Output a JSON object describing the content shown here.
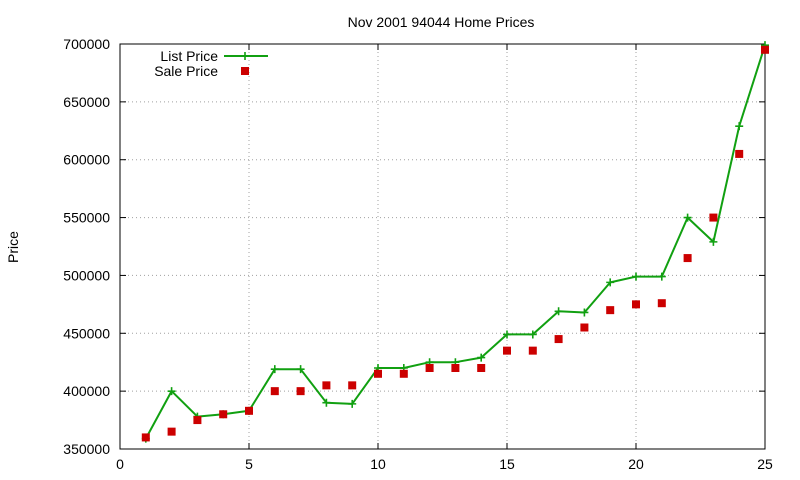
{
  "chart_data": {
    "type": "line",
    "title": "Nov 2001 94044 Home Prices",
    "xlabel": "",
    "ylabel": "Price",
    "xlim": [
      0,
      25
    ],
    "ylim": [
      350000,
      700000
    ],
    "xticks": [
      0,
      5,
      10,
      15,
      20,
      25
    ],
    "yticks": [
      350000,
      400000,
      450000,
      500000,
      550000,
      600000,
      650000,
      700000
    ],
    "grid": true,
    "legend_position": "top-left",
    "series": [
      {
        "name": "List Price",
        "style": "line+plus-markers",
        "color": "#11a011",
        "x": [
          1,
          2,
          3,
          4,
          5,
          6,
          7,
          8,
          9,
          10,
          11,
          12,
          13,
          14,
          15,
          16,
          17,
          18,
          19,
          20,
          21,
          22,
          23,
          24,
          25
        ],
        "values": [
          359000,
          400000,
          378000,
          380000,
          383000,
          419000,
          419000,
          390000,
          389000,
          420000,
          420000,
          425000,
          425000,
          429000,
          449000,
          449000,
          469000,
          468000,
          494000,
          499000,
          499000,
          550000,
          529000,
          629000,
          699000
        ]
      },
      {
        "name": "Sale Price",
        "style": "square-markers",
        "color": "#cc0000",
        "x": [
          1,
          2,
          3,
          4,
          5,
          6,
          7,
          8,
          9,
          10,
          11,
          12,
          13,
          14,
          15,
          16,
          17,
          18,
          19,
          20,
          21,
          22,
          23,
          24,
          25
        ],
        "values": [
          360000,
          365000,
          375000,
          380000,
          383000,
          400000,
          400000,
          405000,
          405000,
          415000,
          415000,
          420000,
          420000,
          420000,
          435000,
          435000,
          445000,
          455000,
          470000,
          475000,
          476000,
          515000,
          550000,
          605000,
          695000
        ]
      }
    ]
  }
}
